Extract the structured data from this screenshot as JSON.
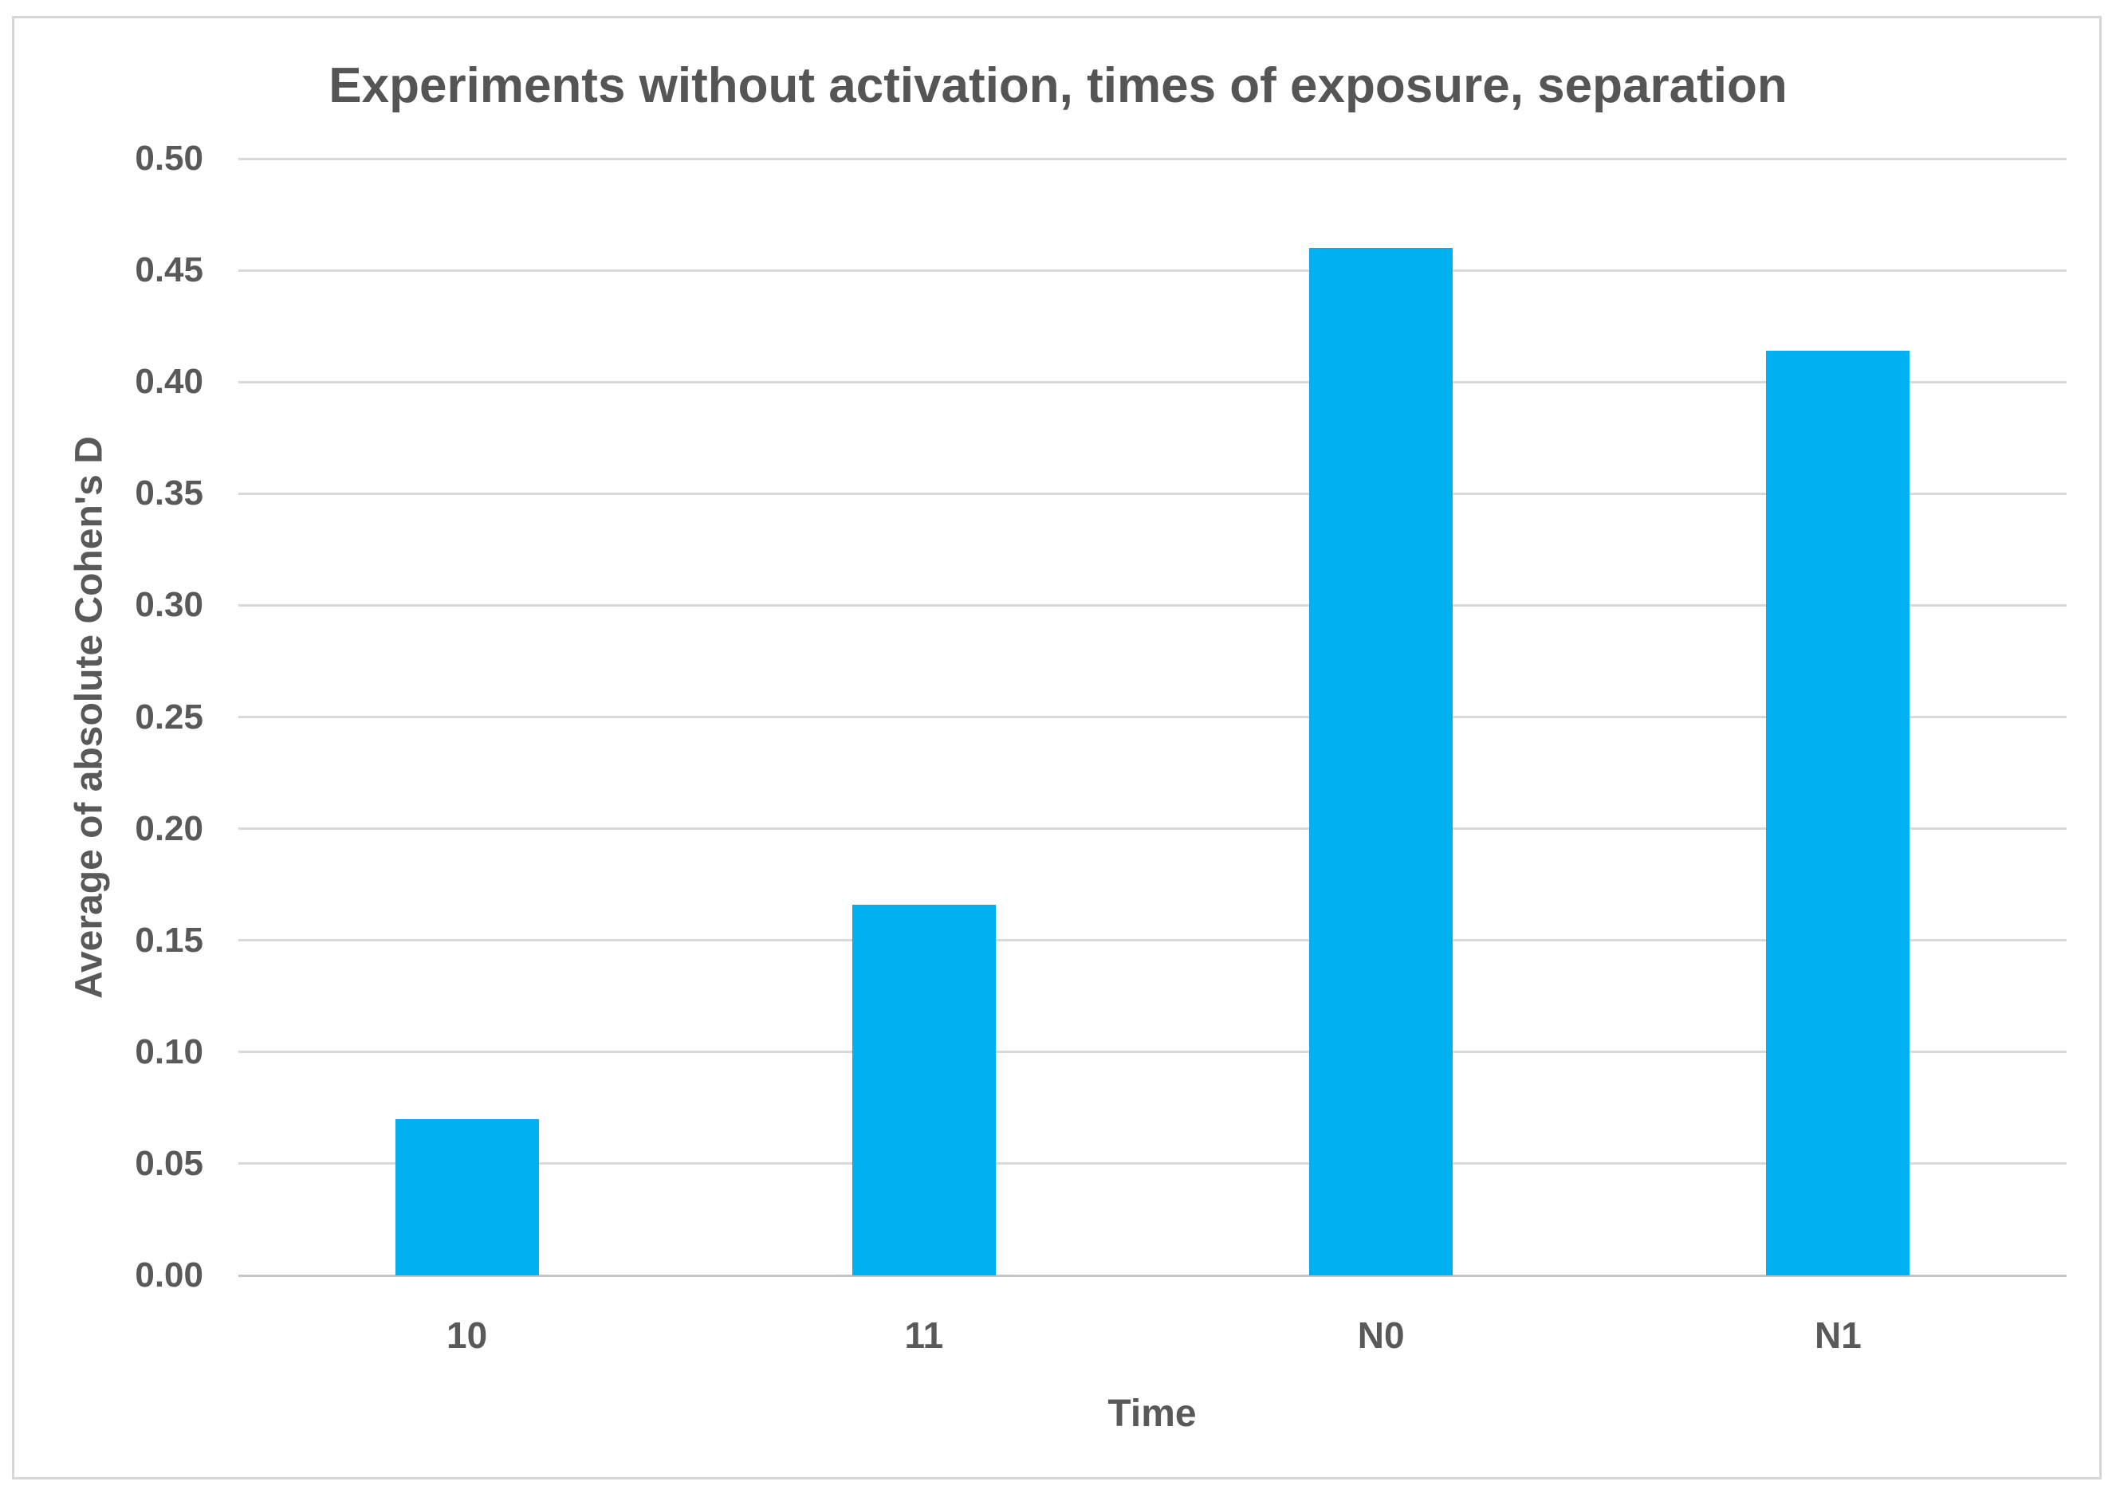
{
  "chart_data": {
    "type": "bar",
    "title": "Experiments without activation, times of exposure, separation",
    "xlabel": "Time",
    "ylabel": "Average of absolute Cohen's D",
    "categories": [
      "10",
      "11",
      "N0",
      "N1"
    ],
    "values": [
      0.07,
      0.166,
      0.46,
      0.414
    ],
    "ylim": [
      0.0,
      0.5
    ],
    "ytick_step": 0.05,
    "yticks": [
      "0.00",
      "0.05",
      "0.10",
      "0.15",
      "0.20",
      "0.25",
      "0.30",
      "0.35",
      "0.40",
      "0.45",
      "0.50"
    ],
    "grid": true,
    "legend_position": "none",
    "bar_color": "#00B0F0",
    "gridline_color": "#D9D9D9",
    "axis_line_color": "#C3C6C7",
    "text_color": "#595959",
    "title_color": "#555555",
    "frame_border_color": "#D5D7D8",
    "background_color": "#FFFFFF"
  }
}
